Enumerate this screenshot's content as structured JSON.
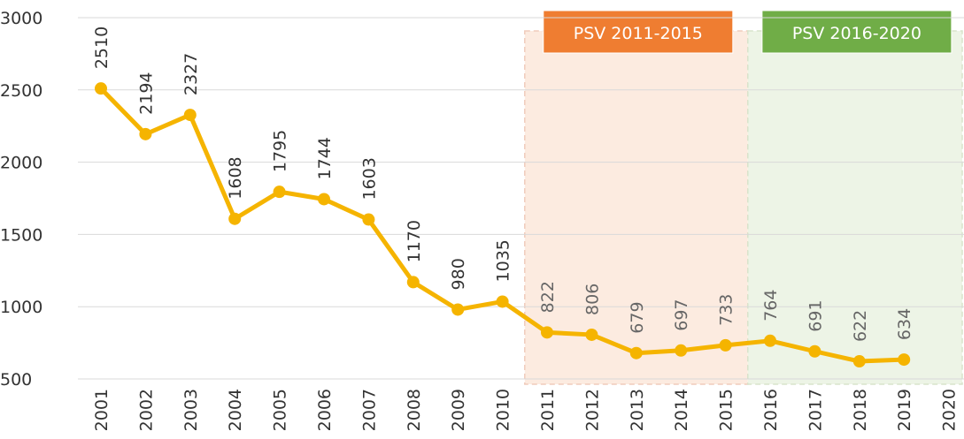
{
  "chart_data": {
    "type": "line",
    "categories": [
      "2001",
      "2002",
      "2003",
      "2004",
      "2005",
      "2006",
      "2007",
      "2008",
      "2009",
      "2010",
      "2011",
      "2012",
      "2013",
      "2014",
      "2015",
      "2016",
      "2017",
      "2018",
      "2019",
      "2020"
    ],
    "series": [
      {
        "name": "",
        "color": "#f5b400",
        "values": [
          2510,
          2194,
          2327,
          1608,
          1795,
          1744,
          1603,
          1170,
          980,
          1035,
          822,
          806,
          679,
          697,
          733,
          764,
          691,
          622,
          634,
          null
        ]
      }
    ],
    "ylim": [
      500,
      3000
    ],
    "yticks": [
      500,
      1000,
      1500,
      2000,
      2500,
      3000
    ],
    "grid": true,
    "regions": [
      {
        "label": "PSV 2011-2015",
        "start": "2011",
        "end": "2015",
        "color": "#ef7d31",
        "fill": "#fcebe0"
      },
      {
        "label": "PSV 2016-2020",
        "start": "2016",
        "end": "2020",
        "color": "#70ad47",
        "fill": "#edf4e6"
      }
    ]
  }
}
